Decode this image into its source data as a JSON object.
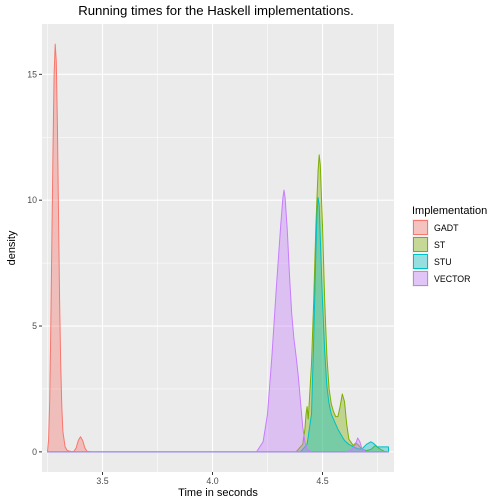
{
  "chart_data": {
    "type": "area",
    "title": "Running times for the Haskell implementations.",
    "xlabel": "Time in seconds",
    "ylabel": "density",
    "xlim": [
      3.225,
      4.825
    ],
    "ylim": [
      -0.8,
      17.0
    ],
    "x_ticks": [
      3.5,
      4.0,
      4.5
    ],
    "y_ticks": [
      0,
      5,
      10,
      15
    ],
    "grid": true,
    "legend": {
      "title": "Implementation",
      "placement": "right"
    },
    "series": [
      {
        "name": "GADT",
        "color": "#F8766D",
        "points": [
          [
            3.25,
            0
          ],
          [
            3.255,
            0.5
          ],
          [
            3.26,
            2
          ],
          [
            3.265,
            5
          ],
          [
            3.27,
            8.5
          ],
          [
            3.275,
            12
          ],
          [
            3.28,
            15
          ],
          [
            3.285,
            16.2
          ],
          [
            3.29,
            15.5
          ],
          [
            3.295,
            13
          ],
          [
            3.3,
            9.5
          ],
          [
            3.305,
            6
          ],
          [
            3.31,
            3.5
          ],
          [
            3.315,
            1.8
          ],
          [
            3.32,
            0.8
          ],
          [
            3.33,
            0.2
          ],
          [
            3.34,
            0.05
          ],
          [
            3.36,
            0.01
          ],
          [
            3.37,
            0.02
          ],
          [
            3.38,
            0.15
          ],
          [
            3.39,
            0.45
          ],
          [
            3.4,
            0.6
          ],
          [
            3.41,
            0.45
          ],
          [
            3.42,
            0.15
          ],
          [
            3.43,
            0.02
          ],
          [
            3.45,
            0
          ],
          [
            4.8,
            0
          ]
        ]
      },
      {
        "name": "ST",
        "color": "#7CAE00",
        "points": [
          [
            3.25,
            0
          ],
          [
            4.38,
            0
          ],
          [
            4.41,
            0.3
          ],
          [
            4.42,
            0.9
          ],
          [
            4.425,
            1.5
          ],
          [
            4.43,
            1.8
          ],
          [
            4.435,
            1.3
          ],
          [
            4.44,
            2
          ],
          [
            4.45,
            3.5
          ],
          [
            4.46,
            6
          ],
          [
            4.47,
            9
          ],
          [
            4.48,
            11.2
          ],
          [
            4.485,
            11.8
          ],
          [
            4.49,
            11.4
          ],
          [
            4.5,
            9
          ],
          [
            4.51,
            6
          ],
          [
            4.52,
            3.8
          ],
          [
            4.53,
            2.5
          ],
          [
            4.54,
            1.9
          ],
          [
            4.55,
            1.6
          ],
          [
            4.56,
            1.4
          ],
          [
            4.57,
            1.4
          ],
          [
            4.58,
            1.8
          ],
          [
            4.59,
            2.3
          ],
          [
            4.6,
            2.0
          ],
          [
            4.61,
            1.1
          ],
          [
            4.62,
            0.5
          ],
          [
            4.64,
            0.25
          ],
          [
            4.65,
            0.35
          ],
          [
            4.66,
            0.3
          ],
          [
            4.68,
            0.1
          ],
          [
            4.7,
            0.05
          ],
          [
            4.72,
            0.1
          ],
          [
            4.74,
            0.25
          ],
          [
            4.76,
            0.12
          ],
          [
            4.78,
            0.02
          ],
          [
            4.8,
            0
          ]
        ]
      },
      {
        "name": "STU",
        "color": "#00BFC4",
        "points": [
          [
            3.25,
            0
          ],
          [
            4.4,
            0
          ],
          [
            4.43,
            0.3
          ],
          [
            4.45,
            1.5
          ],
          [
            4.46,
            4.5
          ],
          [
            4.47,
            8
          ],
          [
            4.475,
            9.5
          ],
          [
            4.48,
            10.1
          ],
          [
            4.485,
            9.8
          ],
          [
            4.49,
            8.5
          ],
          [
            4.5,
            6
          ],
          [
            4.51,
            4
          ],
          [
            4.52,
            2.6
          ],
          [
            4.53,
            1.9
          ],
          [
            4.54,
            1.5
          ],
          [
            4.55,
            1.3
          ],
          [
            4.56,
            1.1
          ],
          [
            4.57,
            0.9
          ],
          [
            4.58,
            0.75
          ],
          [
            4.59,
            0.6
          ],
          [
            4.6,
            0.45
          ],
          [
            4.62,
            0.3
          ],
          [
            4.64,
            0.2
          ],
          [
            4.66,
            0.12
          ],
          [
            4.68,
            0.12
          ],
          [
            4.7,
            0.3
          ],
          [
            4.72,
            0.4
          ],
          [
            4.73,
            0.35
          ],
          [
            4.75,
            0.2
          ],
          [
            4.77,
            0.2
          ],
          [
            4.8,
            0.2
          ]
        ]
      },
      {
        "name": "VECTOR",
        "color": "#C77CFF",
        "points": [
          [
            3.25,
            0
          ],
          [
            4.2,
            0
          ],
          [
            4.23,
            0.4
          ],
          [
            4.25,
            1.5
          ],
          [
            4.27,
            3.8
          ],
          [
            4.29,
            6.5
          ],
          [
            4.31,
            9
          ],
          [
            4.32,
            10.1
          ],
          [
            4.325,
            10.4
          ],
          [
            4.33,
            10.1
          ],
          [
            4.34,
            8.8
          ],
          [
            4.35,
            7
          ],
          [
            4.36,
            5.5
          ],
          [
            4.37,
            4.5
          ],
          [
            4.38,
            3.8
          ],
          [
            4.39,
            3
          ],
          [
            4.4,
            2
          ],
          [
            4.41,
            1
          ],
          [
            4.42,
            0.4
          ],
          [
            4.43,
            0.1
          ],
          [
            4.45,
            0
          ],
          [
            4.6,
            0
          ],
          [
            4.63,
            0.05
          ],
          [
            4.65,
            0.3
          ],
          [
            4.66,
            0.55
          ],
          [
            4.67,
            0.4
          ],
          [
            4.68,
            0.1
          ],
          [
            4.7,
            0
          ],
          [
            4.8,
            0
          ]
        ]
      }
    ]
  }
}
